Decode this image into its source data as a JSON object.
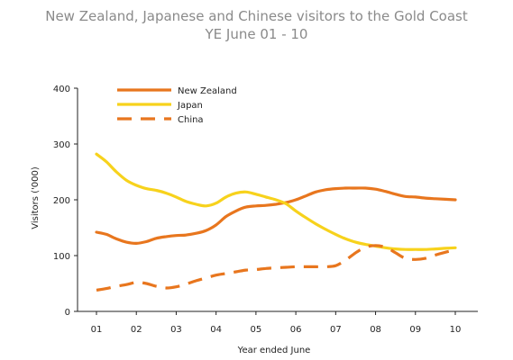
{
  "chart_data": {
    "type": "line",
    "title": "New Zealand, Japanese and Chinese visitors to the Gold Coast",
    "subtitle": "YE June 01 - 10",
    "xlabel": "Year ended June",
    "ylabel": "Visitors ('000)",
    "ylim": [
      0,
      400
    ],
    "yticks": [
      0,
      100,
      200,
      300,
      400
    ],
    "categories": [
      "01",
      "02",
      "03",
      "04",
      "05",
      "06",
      "07",
      "08",
      "09",
      "10"
    ],
    "x": [
      1,
      1.25,
      1.5,
      1.75,
      2,
      2.25,
      2.5,
      2.75,
      3,
      3.25,
      3.5,
      3.75,
      4,
      4.25,
      4.5,
      4.75,
      5,
      5.25,
      5.5,
      5.75,
      6,
      6.25,
      6.5,
      6.75,
      7,
      7.25,
      7.5,
      7.75,
      8,
      8.25,
      8.5,
      8.75,
      9,
      9.25,
      9.5,
      9.75,
      10
    ],
    "series": [
      {
        "name": "New Zealand",
        "color": "#e8761e",
        "dash": "solid",
        "values": [
          142,
          138,
          130,
          124,
          122,
          125,
          131,
          134,
          136,
          137,
          140,
          145,
          155,
          170,
          180,
          187,
          189,
          190,
          192,
          195,
          200,
          207,
          214,
          218,
          220,
          221,
          221,
          221,
          219,
          215,
          210,
          206,
          205,
          203,
          202,
          201,
          200
        ]
      },
      {
        "name": "Japan",
        "color": "#f7d21c",
        "dash": "solid",
        "values": [
          282,
          268,
          250,
          235,
          226,
          220,
          217,
          212,
          205,
          197,
          192,
          189,
          194,
          205,
          212,
          214,
          210,
          205,
          200,
          193,
          180,
          168,
          157,
          147,
          138,
          130,
          124,
          120,
          117,
          114,
          112,
          111,
          111,
          111,
          112,
          113,
          114
        ]
      },
      {
        "name": "China",
        "color": "#e8761e",
        "dash": "dashed",
        "values": [
          38,
          41,
          45,
          48,
          52,
          50,
          45,
          42,
          44,
          49,
          55,
          60,
          65,
          68,
          71,
          74,
          75,
          77,
          78,
          79,
          80,
          80,
          80,
          80,
          82,
          92,
          105,
          115,
          118,
          115,
          105,
          95,
          93,
          95,
          101,
          106,
          110
        ]
      }
    ],
    "legend_position": "top-left",
    "grid": false
  }
}
